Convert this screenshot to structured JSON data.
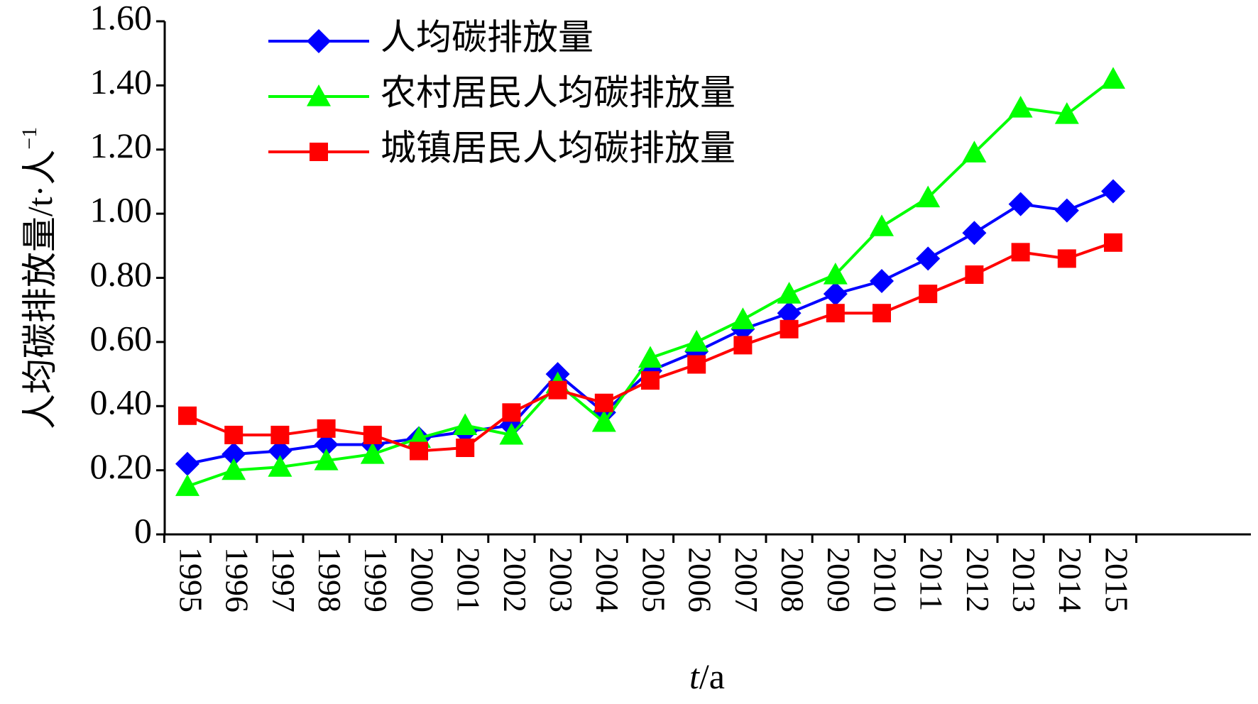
{
  "chart_data": {
    "type": "line",
    "title": "",
    "xlabel": "t/a",
    "ylabel": "人均碳排放量/t·人",
    "ylabel_superscript": "−1",
    "ylim": [
      0,
      1.6
    ],
    "yticks": [
      "0",
      "0.20",
      "0.40",
      "0.60",
      "0.80",
      "1.00",
      "1.20",
      "1.40",
      "1.60"
    ],
    "ytick_values": [
      0,
      0.2,
      0.4,
      0.6,
      0.8,
      1.0,
      1.2,
      1.4,
      1.6
    ],
    "categories": [
      "1995",
      "1996",
      "1997",
      "1998",
      "1999",
      "2000",
      "2001",
      "2002",
      "2003",
      "2004",
      "2005",
      "2006",
      "2007",
      "2008",
      "2009",
      "2010",
      "2011",
      "2012",
      "2013",
      "2014",
      "2015"
    ],
    "grid": false,
    "legend_position": "top-left",
    "series": [
      {
        "name": "人均碳排放量",
        "color": "#0000ff",
        "marker": "diamond",
        "values": [
          0.22,
          0.25,
          0.26,
          0.28,
          0.28,
          0.3,
          0.32,
          0.34,
          0.5,
          0.38,
          0.51,
          0.57,
          0.64,
          0.69,
          0.75,
          0.79,
          0.86,
          0.94,
          1.03,
          1.01,
          1.07
        ]
      },
      {
        "name": "农村居民人均碳排放量",
        "color": "#00ff00",
        "marker": "triangle",
        "values": [
          0.15,
          0.2,
          0.21,
          0.23,
          0.25,
          0.3,
          0.34,
          0.31,
          0.47,
          0.35,
          0.55,
          0.6,
          0.67,
          0.75,
          0.81,
          0.96,
          1.05,
          1.19,
          1.33,
          1.31,
          1.42
        ]
      },
      {
        "name": "城镇居民人均碳排放量",
        "color": "#ff0000",
        "marker": "square",
        "values": [
          0.37,
          0.31,
          0.31,
          0.33,
          0.31,
          0.26,
          0.27,
          0.38,
          0.45,
          0.41,
          0.48,
          0.53,
          0.59,
          0.64,
          0.69,
          0.69,
          0.75,
          0.81,
          0.88,
          0.86,
          0.91
        ]
      }
    ]
  }
}
